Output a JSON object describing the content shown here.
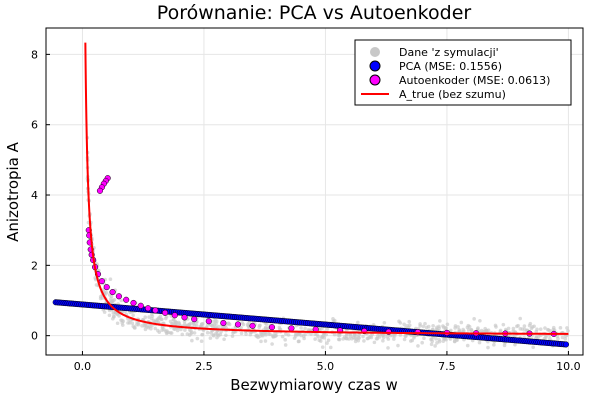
{
  "chart_data": {
    "type": "scatter",
    "title": "Porównanie: PCA vs Autoenkoder",
    "xlabel": "Bezwymiarowy czas w",
    "ylabel": "Anizotropia A",
    "xlim": [
      -0.75,
      10.3
    ],
    "ylim": [
      -0.55,
      8.75
    ],
    "xticks": [
      0,
      2.5,
      5,
      7.5,
      10
    ],
    "xtick_labels": [
      "0.0",
      "2.5",
      "5.0",
      "7.5",
      "10.0"
    ],
    "yticks": [
      0,
      2,
      4,
      6,
      8
    ],
    "ytick_labels": [
      "0",
      "2",
      "4",
      "6",
      "8"
    ],
    "grid": true,
    "legend_position": "top-right",
    "colors": {
      "dane": "#c8c8c8",
      "pca_fill": "#0000ff",
      "autoenkoder_fill": "#ff00ff",
      "marker_edge": "#000000",
      "a_true": "#ff0000"
    },
    "series": [
      {
        "name": "Dane 'z symulacji'",
        "kind": "scatter",
        "model": "noisy samples around A_true",
        "x_range": [
          0.1,
          10.0
        ],
        "y_noise_sd": 0.15
      },
      {
        "name": "PCA (MSE: 0.1556)",
        "kind": "scatter",
        "model": "linear",
        "x_range": [
          -0.55,
          9.95
        ],
        "y_at_start": 0.95,
        "y_at_end": -0.25
      },
      {
        "name": "Autoenkoder (MSE: 0.0613)",
        "kind": "scatter",
        "points": [
          [
            0.52,
            4.48
          ],
          [
            0.48,
            4.4
          ],
          [
            0.44,
            4.32
          ],
          [
            0.4,
            4.22
          ],
          [
            0.36,
            4.12
          ],
          [
            0.13,
            3.0
          ],
          [
            0.14,
            2.85
          ],
          [
            0.15,
            2.65
          ],
          [
            0.17,
            2.45
          ],
          [
            0.19,
            2.3
          ],
          [
            0.22,
            2.15
          ],
          [
            0.26,
            1.95
          ],
          [
            0.32,
            1.75
          ],
          [
            0.4,
            1.55
          ],
          [
            0.5,
            1.38
          ],
          [
            0.62,
            1.24
          ],
          [
            0.75,
            1.12
          ],
          [
            0.9,
            1.02
          ],
          [
            1.05,
            0.93
          ],
          [
            1.2,
            0.85
          ],
          [
            1.35,
            0.78
          ],
          [
            1.5,
            0.72
          ],
          [
            1.7,
            0.65
          ],
          [
            1.9,
            0.58
          ],
          [
            2.1,
            0.52
          ],
          [
            2.3,
            0.47
          ],
          [
            2.6,
            0.41
          ],
          [
            2.9,
            0.36
          ],
          [
            3.2,
            0.32
          ],
          [
            3.5,
            0.28
          ],
          [
            3.9,
            0.24
          ],
          [
            4.3,
            0.21
          ],
          [
            4.8,
            0.18
          ],
          [
            5.3,
            0.15
          ],
          [
            5.8,
            0.13
          ],
          [
            6.3,
            0.11
          ],
          [
            6.9,
            0.1
          ],
          [
            7.5,
            0.08
          ],
          [
            8.1,
            0.07
          ],
          [
            8.7,
            0.06
          ],
          [
            9.2,
            0.06
          ],
          [
            9.7,
            0.05
          ]
        ]
      },
      {
        "name": "A_true (bez szumu)",
        "kind": "line",
        "model": "A = 0.5 / w",
        "x_range": [
          0.06,
          10.0
        ]
      }
    ]
  }
}
